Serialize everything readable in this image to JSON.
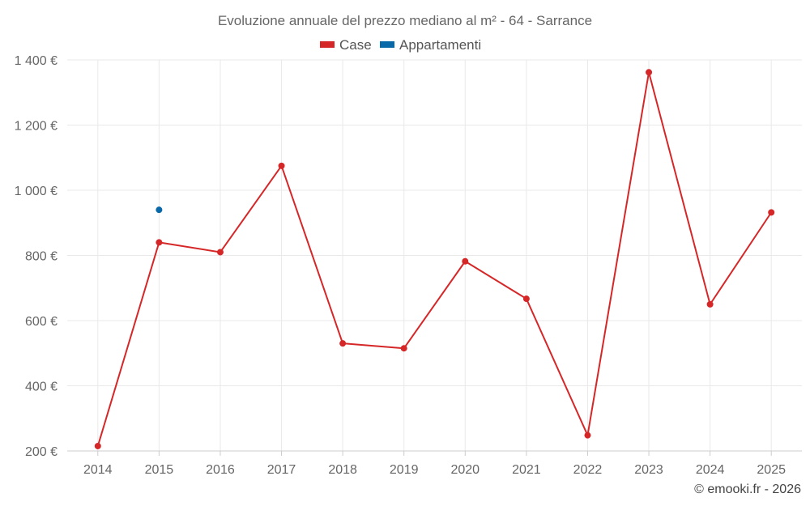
{
  "chart_data": {
    "type": "line",
    "title": "Evoluzione annuale del prezzo mediano al m² - 64 - Sarrance",
    "categories": [
      "2014",
      "2015",
      "2016",
      "2017",
      "2018",
      "2019",
      "2020",
      "2021",
      "2022",
      "2023",
      "2024",
      "2025"
    ],
    "series": [
      {
        "name": "Case",
        "color": "#d62728",
        "values": [
          215,
          840,
          810,
          1075,
          530,
          515,
          782,
          667,
          248,
          1362,
          650,
          932
        ]
      },
      {
        "name": "Appartamenti",
        "color": "#0868a8",
        "values": [
          null,
          940,
          null,
          null,
          null,
          null,
          null,
          null,
          null,
          null,
          null,
          null
        ]
      }
    ],
    "y_ticks": [
      200,
      400,
      600,
      800,
      1000,
      1200,
      1400
    ],
    "y_tick_labels": [
      "200 €",
      "400 €",
      "600 €",
      "800 €",
      "1 000 €",
      "1 200 €",
      "1 400 €"
    ],
    "ylim": [
      200,
      1400
    ],
    "grid": true,
    "legend_position": "top-center"
  },
  "credit": "© emooki.fr - 2026"
}
